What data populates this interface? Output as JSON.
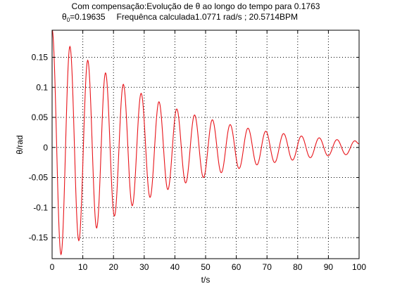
{
  "figure": {
    "background": "#ffffff",
    "axes_color": "#000000",
    "grid_color": "#000000"
  },
  "chart_data": {
    "type": "line",
    "title_line1": "Com compensação:Evolução de θ ao longo do tempo para 0.1763",
    "title_line2": {
      "theta_symbol": "θ",
      "theta_subscript": "0",
      "theta_value": "=0.19635",
      "frequency_text": "Frequênca calculada1.0771 rad/s ; 20.5714BPM"
    },
    "xlabel": "t/s",
    "ylabel": "θ/rad",
    "xlim": [
      0,
      100
    ],
    "ylim": [
      -0.185,
      0.195
    ],
    "xticks": [
      0,
      10,
      20,
      30,
      40,
      50,
      60,
      70,
      80,
      90,
      100
    ],
    "xtick_labels": [
      "0",
      "10",
      "20",
      "30",
      "40",
      "50",
      "60",
      "70",
      "80",
      "90",
      "100"
    ],
    "yticks": [
      -0.15,
      -0.1,
      -0.05,
      0,
      0.05,
      0.1,
      0.15
    ],
    "ytick_labels": [
      "-0.15",
      "-0.1",
      "-0.05",
      "0",
      "0.05",
      "0.1",
      "0.15"
    ],
    "grid": true,
    "grid_style": "dotted",
    "series": [
      {
        "color": "#e8141a",
        "x": [
          0,
          2.9,
          5.8,
          8.7,
          11.6,
          14.5,
          17.4,
          20.3,
          23.2,
          26.1,
          29.0,
          31.9,
          34.8,
          37.7,
          40.6,
          43.5,
          46.4,
          49.3,
          52.2,
          55.1,
          58.0,
          60.9,
          63.8,
          66.7,
          69.6,
          72.5,
          75.4,
          78.3,
          81.2,
          84.1,
          87.0,
          89.9,
          92.8,
          95.7,
          98.6,
          100
        ],
        "y": [
          0.19635,
          -0.178,
          0.168,
          -0.155,
          0.145,
          -0.134,
          0.124,
          -0.114,
          0.105,
          -0.097,
          0.09,
          -0.083,
          0.076,
          -0.07,
          0.064,
          -0.059,
          0.054,
          -0.05,
          0.046,
          -0.042,
          0.038,
          -0.035,
          0.032,
          -0.029,
          0.027,
          -0.025,
          0.023,
          -0.021,
          0.019,
          -0.017,
          0.016,
          -0.014,
          0.013,
          -0.012,
          0.011,
          0.006
        ]
      }
    ]
  }
}
